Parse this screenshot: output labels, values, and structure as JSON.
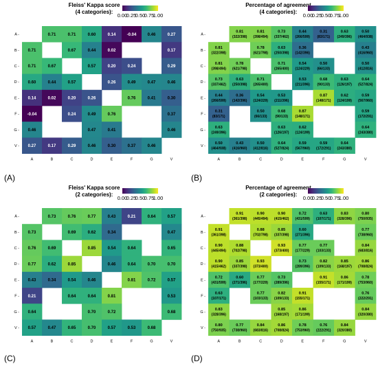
{
  "figure": {
    "colorbar_ticks": [
      "0.00",
      "0.25",
      "0.50",
      "0.75",
      "1.00"
    ],
    "colors": {
      "viridis": [
        "#440154",
        "#482878",
        "#3e4989",
        "#31688e",
        "#26828e",
        "#1f9e89",
        "#35b779",
        "#6ece58",
        "#b5de2b",
        "#fde725"
      ]
    }
  },
  "chart_data": [
    {
      "type": "heatmap",
      "panel_label": "(A)",
      "title": "Fleiss' Kappa score\n(4 categories):",
      "rows": [
        "A",
        "B",
        "C",
        "D",
        "E",
        "F",
        "G",
        "V"
      ],
      "cols": [
        "A",
        "B",
        "C",
        "D",
        "E",
        "F",
        "G",
        "V"
      ],
      "value_range": [
        0,
        1
      ],
      "values": [
        [
          null,
          0.71,
          0.71,
          0.6,
          0.14,
          -0.04,
          0.46,
          0.27
        ],
        [
          0.71,
          null,
          0.67,
          0.44,
          0.02,
          null,
          null,
          0.17
        ],
        [
          0.71,
          0.67,
          null,
          0.57,
          0.2,
          0.24,
          null,
          0.29
        ],
        [
          0.6,
          0.44,
          0.57,
          null,
          0.26,
          0.49,
          0.47,
          0.46
        ],
        [
          0.14,
          0.02,
          0.2,
          0.26,
          null,
          0.76,
          0.41,
          0.3
        ],
        [
          -0.04,
          null,
          0.24,
          0.49,
          0.76,
          null,
          null,
          0.37
        ],
        [
          0.46,
          null,
          null,
          0.47,
          0.41,
          null,
          null,
          0.46
        ],
        [
          0.27,
          0.17,
          0.29,
          0.46,
          0.3,
          0.37,
          0.46,
          null
        ]
      ]
    },
    {
      "type": "heatmap",
      "panel_label": "(B)",
      "title": "Percentage of agreement\n(4 categories):",
      "rows": [
        "A",
        "B",
        "C",
        "D",
        "E",
        "F",
        "G",
        "V"
      ],
      "cols": [
        "A",
        "B",
        "C",
        "D",
        "E",
        "F",
        "G",
        "V"
      ],
      "value_range": [
        0,
        1
      ],
      "values": [
        [
          null,
          0.81,
          0.81,
          0.73,
          0.44,
          0.31,
          0.63,
          0.5
        ],
        [
          0.81,
          null,
          0.78,
          0.63,
          0.36,
          null,
          null,
          0.43
        ],
        [
          0.81,
          0.78,
          null,
          0.71,
          0.54,
          0.5,
          null,
          0.5
        ],
        [
          0.73,
          0.63,
          0.71,
          null,
          0.53,
          0.68,
          0.63,
          0.64
        ],
        [
          0.44,
          0.36,
          0.54,
          0.53,
          null,
          0.87,
          0.62,
          0.59
        ],
        [
          0.31,
          null,
          0.5,
          0.68,
          0.87,
          null,
          null,
          0.59
        ],
        [
          0.63,
          null,
          null,
          0.63,
          0.62,
          null,
          null,
          0.64
        ],
        [
          0.5,
          0.43,
          0.5,
          0.64,
          0.59,
          0.59,
          0.64,
          null
        ]
      ],
      "counts": [
        [
          null,
          "322/398",
          "398/494",
          "337/462",
          "266/599",
          "83/171",
          "249/396",
          "464/938"
        ],
        [
          "322/398",
          null,
          "621/798",
          "250/398",
          "142/396",
          null,
          null,
          "416/960"
        ],
        [
          "398/494",
          "621/798",
          null,
          "265/400",
          "124/229",
          "66/133",
          null,
          "412/816"
        ],
        [
          "337/462",
          "250/398",
          "265/400",
          null,
          "211/396",
          "90/133",
          "126/197",
          "527/824"
        ],
        [
          "266/599",
          "142/396",
          "124/229",
          "211/396",
          null,
          "148/171",
          "124/199",
          "567/960"
        ],
        [
          "83/171",
          null,
          "66/133",
          "90/133",
          "148/171",
          null,
          null,
          "172/291"
        ],
        [
          "249/396",
          null,
          null,
          "126/197",
          "124/199",
          null,
          null,
          "243/380"
        ],
        [
          "464/938",
          "416/960",
          "412/816",
          "527/824",
          "567/960",
          "172/291",
          "243/380",
          null
        ]
      ]
    },
    {
      "type": "heatmap",
      "panel_label": "(C)",
      "title": "Fleiss' Kappa score\n(2 categories):",
      "rows": [
        "A",
        "B",
        "C",
        "D",
        "E",
        "F",
        "G",
        "V"
      ],
      "cols": [
        "A",
        "B",
        "C",
        "D",
        "E",
        "F",
        "G",
        "V"
      ],
      "value_range": [
        0,
        1
      ],
      "values": [
        [
          null,
          0.73,
          0.76,
          0.77,
          0.43,
          0.21,
          0.64,
          0.57
        ],
        [
          0.73,
          null,
          0.69,
          0.62,
          0.34,
          null,
          null,
          0.47
        ],
        [
          0.76,
          0.69,
          null,
          0.85,
          0.54,
          0.64,
          null,
          0.65
        ],
        [
          0.77,
          0.62,
          0.85,
          null,
          0.46,
          0.64,
          0.7,
          0.7
        ],
        [
          0.43,
          0.34,
          0.54,
          0.46,
          null,
          0.81,
          0.72,
          0.57
        ],
        [
          0.21,
          null,
          0.64,
          0.64,
          0.81,
          null,
          null,
          0.53
        ],
        [
          0.64,
          null,
          null,
          0.7,
          0.72,
          null,
          null,
          0.68
        ],
        [
          0.57,
          0.47,
          0.65,
          0.7,
          0.57,
          0.53,
          0.68,
          null
        ]
      ]
    },
    {
      "type": "heatmap",
      "panel_label": "(D)",
      "title": "Percentage of agreement\n(2 categories):",
      "rows": [
        "A",
        "B",
        "C",
        "D",
        "E",
        "F",
        "G",
        "V"
      ],
      "cols": [
        "A",
        "B",
        "C",
        "D",
        "E",
        "F",
        "G",
        "V"
      ],
      "value_range": [
        0,
        1
      ],
      "values": [
        [
          null,
          0.91,
          0.9,
          0.9,
          0.72,
          0.63,
          0.83,
          0.8
        ],
        [
          0.91,
          null,
          0.88,
          0.85,
          0.6,
          null,
          null,
          0.77
        ],
        [
          0.9,
          0.88,
          null,
          0.93,
          0.77,
          0.77,
          null,
          0.84
        ],
        [
          0.9,
          0.85,
          0.93,
          null,
          0.73,
          0.82,
          0.85,
          0.86
        ],
        [
          0.72,
          0.6,
          0.77,
          0.73,
          null,
          0.91,
          0.86,
          0.78
        ],
        [
          0.63,
          null,
          0.77,
          0.82,
          0.91,
          null,
          null,
          0.76
        ],
        [
          0.83,
          null,
          null,
          0.85,
          0.86,
          null,
          null,
          0.84
        ],
        [
          0.8,
          0.77,
          0.84,
          0.86,
          0.78,
          0.76,
          0.84,
          null
        ]
      ],
      "counts": [
        [
          null,
          "361/398",
          "445/494",
          "415/462",
          "431/599",
          "107/171",
          "328/396",
          "750/935"
        ],
        [
          "361/398",
          null,
          "702/798",
          "337/398",
          "271/396",
          null,
          null,
          "738/960"
        ],
        [
          "445/494",
          "702/798",
          null,
          "373/400",
          "177/229",
          "103/133",
          null,
          "683/816"
        ],
        [
          "415/462",
          "337/398",
          "373/400",
          null,
          "289/396",
          "109/133",
          "168/197",
          "708/824"
        ],
        [
          "431/599",
          "271/396",
          "177/229",
          "289/396",
          null,
          "155/171",
          "171/199",
          "753/960"
        ],
        [
          "107/171",
          null,
          "103/133",
          "109/133",
          "155/171",
          null,
          null,
          "222/291"
        ],
        [
          "328/396",
          null,
          null,
          "168/197",
          "171/199",
          null,
          null,
          "320/380"
        ],
        [
          "750/935",
          "738/960",
          "683/816",
          "708/824",
          "753/960",
          "222/291",
          "320/380",
          null
        ]
      ]
    }
  ]
}
